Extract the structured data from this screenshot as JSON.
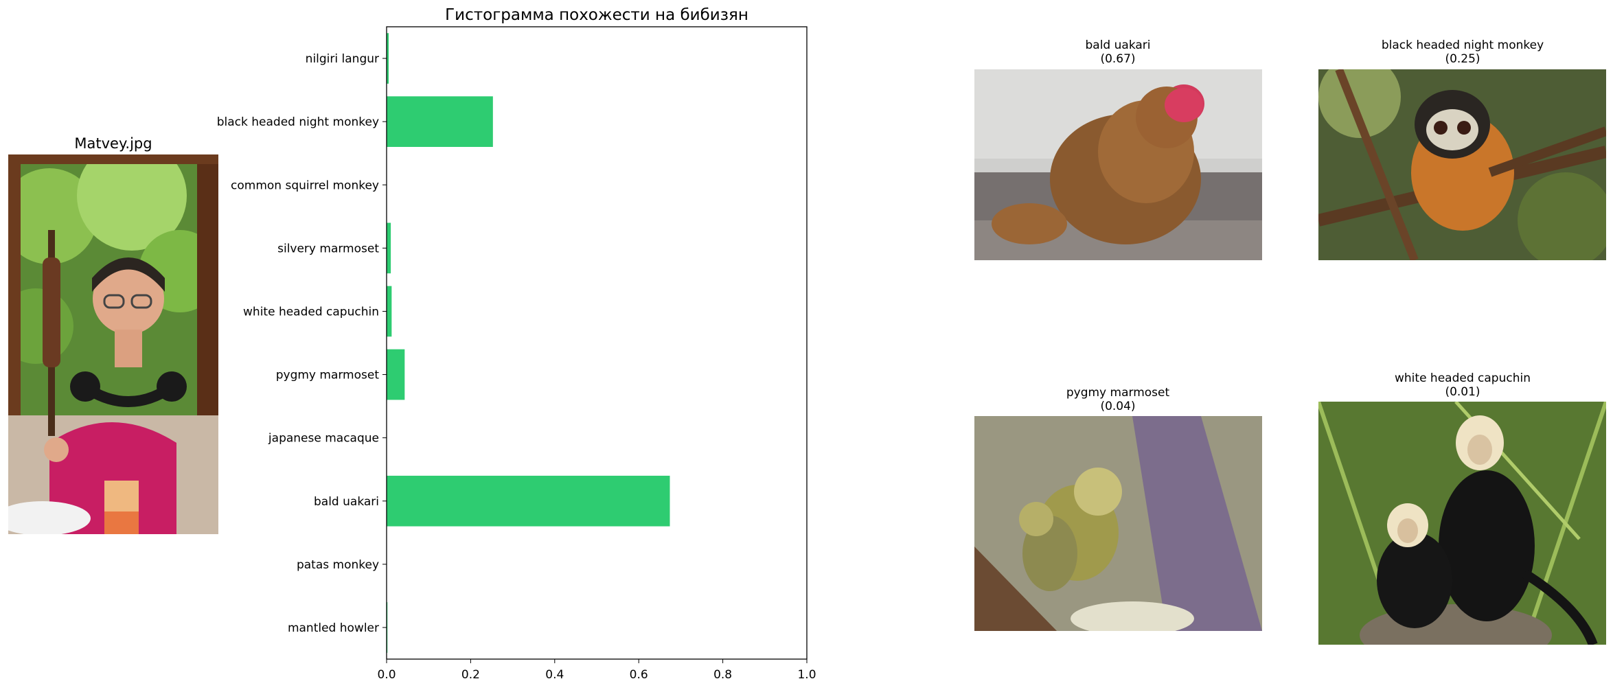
{
  "left_photo": {
    "title": "Matvey.jpg"
  },
  "chart_data": {
    "type": "bar",
    "orientation": "horizontal",
    "title": "Гистограмма похожести на бибизян",
    "categories": [
      "mantled howler",
      "patas monkey",
      "bald uakari",
      "japanese macaque",
      "pygmy marmoset",
      "white headed capuchin",
      "silvery marmoset",
      "common squirrel monkey",
      "black headed night monkey",
      "nilgiri langur"
    ],
    "values": [
      0.002,
      0.0,
      0.674,
      0.0,
      0.043,
      0.012,
      0.01,
      0.0,
      0.253,
      0.005
    ],
    "xlim": [
      0,
      1.0
    ],
    "xticks": [
      "0.0",
      "0.2",
      "0.4",
      "0.6",
      "0.8",
      "1.0"
    ],
    "xlabel": "",
    "ylabel": "",
    "grid": false,
    "bar_color": "#2ecc71"
  },
  "thumbnails": [
    {
      "name": "bald uakari",
      "score": "(0.67)"
    },
    {
      "name": "black headed night monkey",
      "score": "(0.25)"
    },
    {
      "name": "pygmy marmoset",
      "score": "(0.04)"
    },
    {
      "name": "white headed capuchin",
      "score": "(0.01)"
    }
  ]
}
